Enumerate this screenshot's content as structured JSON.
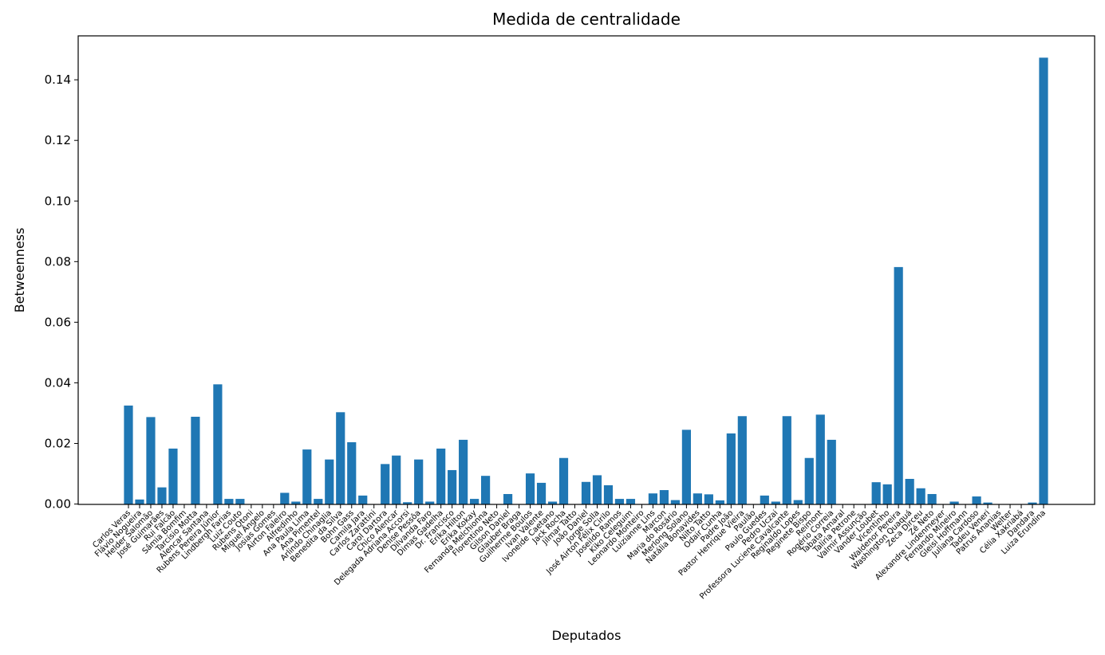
{
  "chart_data": {
    "type": "bar",
    "title": "Medida de centralidade",
    "xlabel": "Deputados",
    "ylabel": "Betweenness",
    "ylim": [
      -0.00012,
      0.1545
    ],
    "yticks": [
      "0.00",
      "0.02",
      "0.04",
      "0.06",
      "0.08",
      "0.10",
      "0.12",
      "0.14"
    ],
    "bar_color": "#1f77b4",
    "grid": false,
    "categories": [
      "Carlos Veras",
      "Flávio Nogueira",
      "Helder Salomão",
      "José Guimarães",
      "Rui Falcão",
      "Sâmia Bomfim",
      "Tarcísio Motta",
      "Alencar Santana",
      "Rubens Pereira Júnior",
      "Lindbergh Farias",
      "Luiz Couto",
      "Rubens Otoni",
      "Miguel Ângelo",
      "Josias Gomes",
      "Airton Faleiro",
      "Alfredinho",
      "Ana Paula Lima",
      "Ana Pimentel",
      "Arlindo Chinaglia",
      "Benedita da Silva",
      "Bohn Gass",
      "Camila Jara",
      "Carlos Zarattini",
      "Carol Dartora",
      "Chico Alencar",
      "Delegada Adriana Accorsi",
      "Denise Pessôa",
      "Dilvanda Faro",
      "Dimas Gadelha",
      "Dr. Francisco",
      "Erika Hilton",
      "Erika Kokay",
      "Fernanda Melchionna",
      "Florentino Neto",
      "Gilson Daniel",
      "Glauber Braga",
      "Guilherme Boulos",
      "Ivan Valente",
      "Ivoneide Caetano",
      "Jack Rocha",
      "Jilmar Tatto",
      "João Daniel",
      "Jorge Solla",
      "José Airton Félix Cirilo",
      "Joseildo Ramos",
      "Kiko Celeguim",
      "Leonardo Monteiro",
      "Luizianne Lins",
      "Marcon",
      "Maria do Rosário",
      "Merlong Solano",
      "Natália Bonavides",
      "Nilto Tatto",
      "Odair Cunha",
      "Padre João",
      "Pastor Henrique Vieira",
      "Paulão",
      "Paulo Guedes",
      "Pedro Uczai",
      "Professora Luciene Cavalcante",
      "Reginaldo Lopes",
      "Reginete Bispo",
      "Reimont",
      "Rogério Correia",
      "Tabata Amaral",
      "Talíria Petrone",
      "Valmir Assunção",
      "Vander Loubet",
      "Vicentinho",
      "Waldenor Pereira",
      "Washington Quaquá",
      "Zeca Dirceu",
      "Zé Neto",
      "Alexandre Lindenmeyer",
      "Fernando Mineiro",
      "Gleisi Hoffmann",
      "Juliana Cardoso",
      "Tadeu Veneri",
      "Patrus Ananias",
      "Welter",
      "Célia Xakriabá",
      "Dandara",
      "Luiza Erundina"
    ],
    "tick_labels_shown": [
      "Carlos Veras",
      "Flávio Nogueira",
      "Helder Salomão",
      "José Guimarães",
      "Rui Falcão",
      "Sâmia Bomfim",
      "Tarcísio Motta",
      "Alencar Santana",
      "Rubens Pereira Júnior",
      "Lindbergh Farias",
      "Luiz Couto",
      "Rubens Otoni",
      "Miguel Ângelo",
      "Josias Gomes",
      "Airton Faleiro",
      "Alfredinho",
      "Ana Paula Lima",
      "Ana Pimentel",
      "Arlindo Chinaglia",
      "Benedita da Silva",
      "Bohn Gass",
      "Camila Jara",
      "Carlos Zarattini",
      "Carol Dartora",
      "Chico Alencar",
      "Delegada Adriana Accorsi",
      "Denise Pessôa",
      "Dilvanda Faro",
      "Dimas Gadelha",
      "Dr. Francisco",
      "Erika Hilton",
      "Erika Kokay",
      "Fernanda Melchionna",
      "Florentino Neto",
      "Gilson Daniel",
      "Glauber Braga",
      "Guilherme Boulos",
      "Ivan Valente",
      "Ivoneide Caetano",
      "Jack Rocha",
      "Jilmar Tatto",
      "João Daniel",
      "Jorge Solla",
      "José Airton Félix Cirilo",
      "Joseildo Ramos",
      "Kiko Celeguim",
      "Leonardo Monteiro",
      "Luizianne Lins",
      "Marcon",
      "Maria do Rosário",
      "Merlong Solano",
      "Natália Bonavides",
      "Nilto Tatto",
      "Odair Cunha",
      "Padre João",
      "Pastor Henrique Vieira",
      "Paulão",
      "Paulo Guedes",
      "Pedro Uczai",
      "Professora Luciene Cavalcante",
      "Reginaldo Lopes",
      "Reginete Bispo",
      "Reimont",
      "Rogério Correia",
      "Tabata Amaral",
      "Talíria Petrone",
      "Valmir Assunção",
      "Vander Loubet",
      "Vicentinho",
      "Waldenor Pereira",
      "Washington Quaquá",
      "Zeca Dirceu",
      "Zé Neto",
      "Alexandre Lindenmeyer",
      "Fernando Mineiro",
      "Gleisi Hoffmann",
      "Juliana Cardoso",
      "Tadeu Veneri",
      "Patrus Ananias",
      "Welter",
      "Célia Xakriabá",
      "Dandara",
      "Luiza Erundina"
    ],
    "values": [
      0.0325,
      0.0015,
      0.0287,
      0.0055,
      0.0183,
      0.0,
      0.0288,
      0.0,
      0.0395,
      0.0017,
      0.0017,
      0.0,
      0.0,
      0.0,
      0.0037,
      0.0008,
      0.018,
      0.0017,
      0.0147,
      0.0303,
      0.0204,
      0.0028,
      0.0,
      0.0132,
      0.016,
      0.0006,
      0.0147,
      0.0008,
      0.0183,
      0.0112,
      0.0212,
      0.0017,
      0.0093,
      0.0,
      0.0033,
      0.0,
      0.0101,
      0.007,
      0.0008,
      0.0152,
      0.0,
      0.0073,
      0.0095,
      0.0062,
      0.0017,
      0.0017,
      0.0,
      0.0035,
      0.0046,
      0.0013,
      0.0245,
      0.0035,
      0.0032,
      0.0012,
      0.0233,
      0.029,
      0.0,
      0.0028,
      0.0008,
      0.029,
      0.0013,
      0.0152,
      0.0295,
      0.0212,
      0.0,
      0.0,
      0.0,
      0.0072,
      0.0065,
      0.0782,
      0.0083,
      0.0052,
      0.0033,
      0.0,
      0.0008,
      0.0,
      0.0025,
      0.0005,
      0.0,
      0.0,
      0.0,
      0.0005,
      0.1473
    ]
  }
}
